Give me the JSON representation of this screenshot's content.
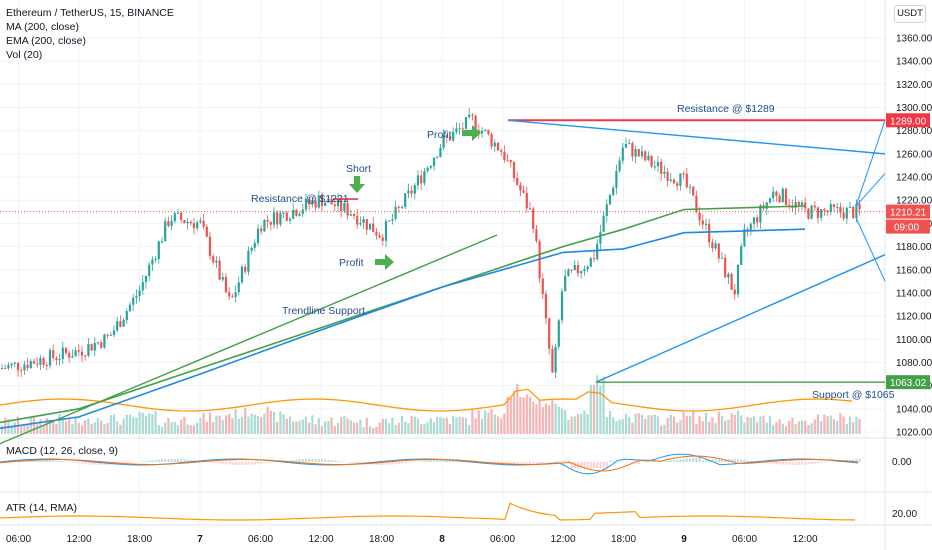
{
  "header": {
    "symbol_line": "Ethereum / TetherUS, 15, BINANCE",
    "indicators": [
      "MA (200, close)",
      "EMA (200, close)",
      "Vol (20)"
    ],
    "currency_button": "USDT"
  },
  "price_axis": {
    "ticks": [
      "1360.00",
      "1340.00",
      "1320.00",
      "1300.00",
      "1280.00",
      "1260.00",
      "1240.00",
      "1220.00",
      "1200.00",
      "1180.00",
      "1160.00",
      "1140.00",
      "1120.00",
      "1100.00",
      "1080.00",
      "1060.00",
      "1040.00",
      "1020.00"
    ],
    "resistance_label": "1289.00",
    "current_price_label": "1210.21",
    "countdown_label": "09:00",
    "support_label": "1063.02"
  },
  "time_axis": [
    "06:00",
    "12:00",
    "18:00",
    "7",
    "06:00",
    "12:00",
    "18:00",
    "8",
    "06:00",
    "12:00",
    "18:00",
    "9",
    "06:00",
    "12:00"
  ],
  "annotations": {
    "profit_top": "Profit",
    "short": "Short",
    "resistance_1221": "Resistance @ $1221",
    "profit_mid": "Profit",
    "trendline_support": "Trendline Support",
    "resistance_1289": "Resistance @ $1289",
    "support_1065": "Support @ $1065"
  },
  "panes": {
    "macd": {
      "title": "MACD (12, 26, close, 9)",
      "tick": "0.00"
    },
    "atr": {
      "title": "ATR (14, RMA)",
      "tick": "20.00"
    }
  },
  "colors": {
    "up": "#26a69a",
    "down": "#ef5350",
    "ma": "#43a047",
    "ema": "#1e88e5",
    "resistance": "#f23645",
    "support": "#43a047",
    "trend": "#2196f3",
    "annotation_text": "#1f4e8c",
    "arrow": "#4caf50",
    "vol_ma": "#ff9800",
    "atr": "#ff9800"
  },
  "chart_data": {
    "type": "candlestick",
    "title": "Ethereum / TetherUS, 15, BINANCE",
    "ylabel": "USDT",
    "ylim": [
      1015,
      1370
    ],
    "x": [
      "6 06:00",
      "6 12:00",
      "6 18:00",
      "7 00:00",
      "7 06:00",
      "7 12:00",
      "7 18:00",
      "8 00:00",
      "8 06:00",
      "8 12:00",
      "8 18:00",
      "9 00:00",
      "9 06:00",
      "9 12:00"
    ],
    "price_path": [
      {
        "t": "6 00:00",
        "v": 1068
      },
      {
        "t": "6 06:00",
        "v": 1078
      },
      {
        "t": "6 12:00",
        "v": 1090
      },
      {
        "t": "6 15:00",
        "v": 1102
      },
      {
        "t": "6 18:00",
        "v": 1142
      },
      {
        "t": "6 21:00",
        "v": 1205
      },
      {
        "t": "7 00:00",
        "v": 1200
      },
      {
        "t": "7 03:00",
        "v": 1130
      },
      {
        "t": "7 06:00",
        "v": 1200
      },
      {
        "t": "7 12:00",
        "v": 1221
      },
      {
        "t": "7 15:00",
        "v": 1210
      },
      {
        "t": "7 18:00",
        "v": 1190
      },
      {
        "t": "7 21:00",
        "v": 1228
      },
      {
        "t": "8 00:00",
        "v": 1270
      },
      {
        "t": "8 03:00",
        "v": 1289
      },
      {
        "t": "8 06:00",
        "v": 1262
      },
      {
        "t": "8 09:00",
        "v": 1205
      },
      {
        "t": "8 11:00",
        "v": 1065
      },
      {
        "t": "8 12:00",
        "v": 1150
      },
      {
        "t": "8 15:00",
        "v": 1170
      },
      {
        "t": "8 18:00",
        "v": 1268
      },
      {
        "t": "8 21:00",
        "v": 1250
      },
      {
        "t": "9 00:00",
        "v": 1236
      },
      {
        "t": "9 03:00",
        "v": 1180
      },
      {
        "t": "9 05:00",
        "v": 1140
      },
      {
        "t": "9 06:00",
        "v": 1190
      },
      {
        "t": "9 09:00",
        "v": 1228
      },
      {
        "t": "9 12:00",
        "v": 1210
      }
    ],
    "ma_200": [
      {
        "t": "6 00:00",
        "v": 1022
      },
      {
        "t": "6 12:00",
        "v": 1040
      },
      {
        "t": "7 00:00",
        "v": 1075
      },
      {
        "t": "7 12:00",
        "v": 1110
      },
      {
        "t": "8 00:00",
        "v": 1145
      },
      {
        "t": "8 12:00",
        "v": 1180
      },
      {
        "t": "8 18:00",
        "v": 1195
      },
      {
        "t": "9 00:00",
        "v": 1212
      },
      {
        "t": "9 12:00",
        "v": 1215
      }
    ],
    "ema_200": [
      {
        "t": "6 00:00",
        "v": 1018
      },
      {
        "t": "6 12:00",
        "v": 1033
      },
      {
        "t": "7 00:00",
        "v": 1070
      },
      {
        "t": "7 12:00",
        "v": 1108
      },
      {
        "t": "8 00:00",
        "v": 1145
      },
      {
        "t": "8 12:00",
        "v": 1175
      },
      {
        "t": "8 18:00",
        "v": 1178
      },
      {
        "t": "9 00:00",
        "v": 1192
      },
      {
        "t": "9 12:00",
        "v": 1195
      }
    ],
    "levels": {
      "resistance": 1289,
      "support": 1063.02,
      "current": 1210.21,
      "short_resistance": 1221
    },
    "volume_relative": [
      0.2,
      0.25,
      0.3,
      0.2,
      0.35,
      0.3,
      0.4,
      0.25,
      0.3,
      0.35,
      0.5,
      0.6,
      0.4,
      0.3,
      0.25,
      0.3,
      0.2,
      0.25,
      0.3,
      0.35,
      0.3,
      0.5,
      0.55,
      1.0,
      0.9,
      0.5,
      0.6,
      0.45,
      0.35,
      0.3,
      0.4,
      0.35,
      0.45,
      0.3,
      0.3,
      0.25,
      0.3,
      0.35,
      0.3,
      0.25
    ]
  }
}
